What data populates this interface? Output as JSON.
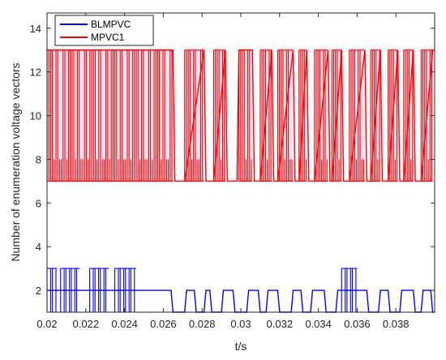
{
  "chart_data": {
    "type": "line",
    "title": "",
    "xlabel": "t/s",
    "ylabel": "Number of enumeration voltage vectors",
    "xlim": [
      0.02,
      0.04
    ],
    "ylim": [
      1,
      14.7
    ],
    "x_ticks": [
      0.02,
      0.022,
      0.024,
      0.026,
      0.028,
      0.03,
      0.032,
      0.034,
      0.036,
      0.038
    ],
    "x_tick_labels": [
      "0.02",
      "0.022",
      "0.024",
      "0.026",
      "0.028",
      "0.03",
      "0.032",
      "0.034",
      "0.036",
      "0.038"
    ],
    "y_ticks": [
      2,
      4,
      6,
      8,
      10,
      12,
      14
    ],
    "y_tick_labels": [
      "2",
      "4",
      "6",
      "8",
      "10",
      "12",
      "14"
    ],
    "grid": false,
    "legend_position": "top-left",
    "series": [
      {
        "name": "BLMPVC",
        "color": "#0000ff",
        "levels": [
          1,
          2,
          3
        ],
        "dense_intervals": [
          [
            0.02,
            0.0205
          ],
          [
            0.0207,
            0.0217
          ],
          [
            0.0222,
            0.0232
          ],
          [
            0.0235,
            0.0246
          ],
          [
            0.0352,
            0.036
          ]
        ],
        "x": [
          0.02,
          0.0264,
          0.0265,
          0.0271,
          0.0272,
          0.0276,
          0.0277,
          0.0281,
          0.0282,
          0.0284,
          0.0285,
          0.029,
          0.0291,
          0.0296,
          0.0297,
          0.0303,
          0.0304,
          0.0309,
          0.031,
          0.0313,
          0.0314,
          0.0319,
          0.032,
          0.0326,
          0.0327,
          0.0331,
          0.0332,
          0.0336,
          0.0337,
          0.0343,
          0.0344,
          0.0349,
          0.035,
          0.0365,
          0.0366,
          0.0371,
          0.0372,
          0.0376,
          0.0377,
          0.0382,
          0.0383,
          0.0389,
          0.039,
          0.0393,
          0.0394,
          0.0398,
          0.0399,
          0.04
        ],
        "y": [
          2,
          2,
          1,
          1,
          2,
          2,
          1,
          1,
          2,
          2,
          1,
          1,
          2,
          2,
          1,
          1,
          2,
          2,
          1,
          1,
          2,
          2,
          1,
          1,
          2,
          2,
          1,
          1,
          2,
          2,
          1,
          1,
          2,
          2,
          1,
          1,
          2,
          2,
          1,
          1,
          2,
          2,
          1,
          1,
          2,
          2,
          1,
          1
        ]
      },
      {
        "name": "MPVC1",
        "color": "#ff0000",
        "levels": [
          7,
          8,
          10,
          13
        ],
        "dense_intervals": [
          [
            0.02,
            0.0265
          ],
          [
            0.0271,
            0.0281
          ],
          [
            0.0286,
            0.0292
          ],
          [
            0.0299,
            0.0306
          ],
          [
            0.031,
            0.0316
          ],
          [
            0.0319,
            0.0327
          ],
          [
            0.033,
            0.0334
          ],
          [
            0.0338,
            0.0345
          ],
          [
            0.0347,
            0.0352
          ],
          [
            0.0356,
            0.0364
          ],
          [
            0.0367,
            0.0372
          ],
          [
            0.0376,
            0.0381
          ],
          [
            0.0384,
            0.0389
          ],
          [
            0.0393,
            0.0399
          ]
        ],
        "x": [
          0.02,
          0.0265,
          0.0266,
          0.0271,
          0.0281,
          0.0282,
          0.0286,
          0.0292,
          0.0293,
          0.0298,
          0.0299,
          0.0306,
          0.0307,
          0.031,
          0.0316,
          0.0317,
          0.0319,
          0.0327,
          0.0328,
          0.033,
          0.0334,
          0.0335,
          0.0338,
          0.0345,
          0.0346,
          0.0347,
          0.0352,
          0.0353,
          0.0356,
          0.0364,
          0.0365,
          0.0367,
          0.0372,
          0.0373,
          0.0376,
          0.0381,
          0.0382,
          0.0384,
          0.0389,
          0.039,
          0.0393,
          0.0399,
          0.04
        ],
        "y": [
          13,
          13,
          7,
          7,
          13,
          7,
          7,
          13,
          7,
          7,
          13,
          13,
          7,
          7,
          13,
          7,
          7,
          13,
          7,
          7,
          13,
          7,
          7,
          13,
          7,
          7,
          13,
          7,
          7,
          13,
          7,
          7,
          13,
          7,
          7,
          13,
          7,
          7,
          13,
          7,
          7,
          13,
          13
        ]
      }
    ]
  }
}
